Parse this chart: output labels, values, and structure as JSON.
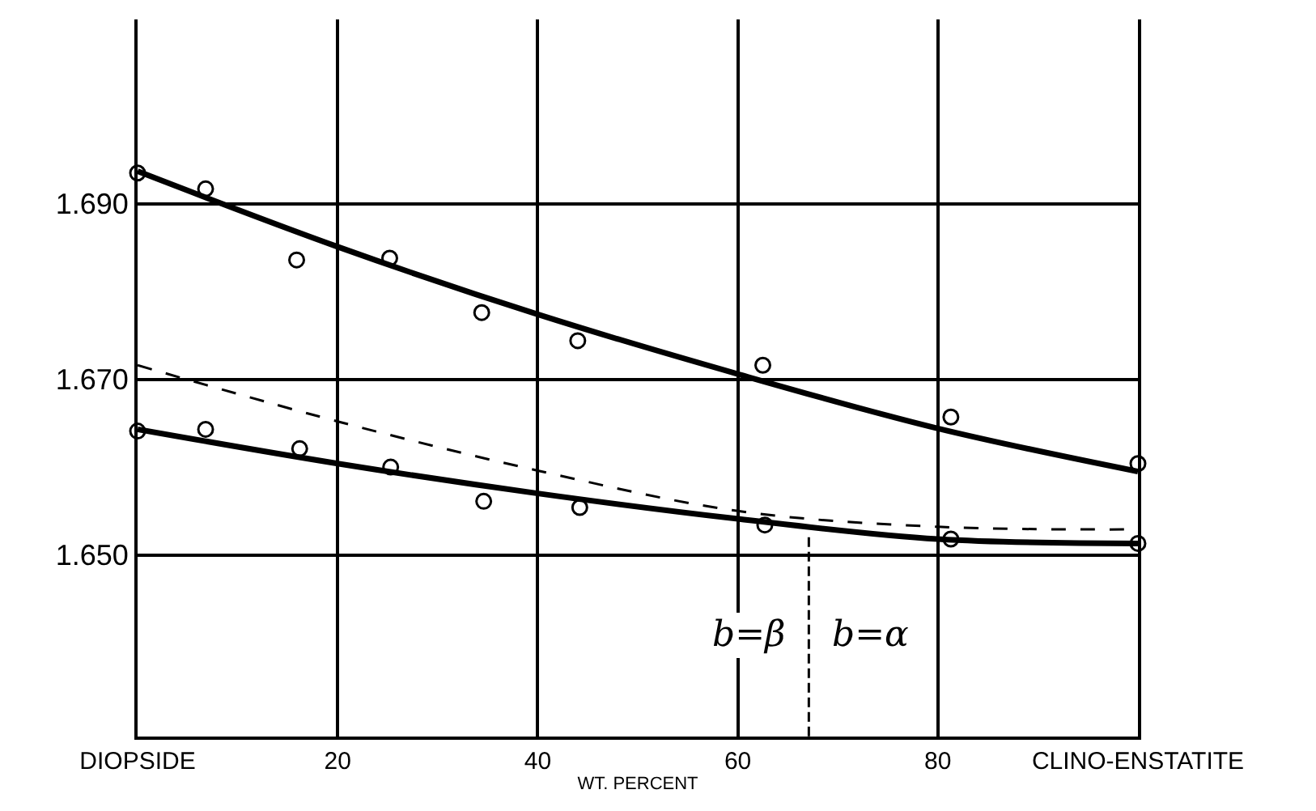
{
  "chart_data": {
    "type": "scatter",
    "xlabel": "WT. PERCENT",
    "xlim": [
      0,
      100
    ],
    "ylim": [
      1.6293,
      1.711
    ],
    "xticks": [
      {
        "value": 0,
        "label": "DIOPSIDE"
      },
      20,
      40,
      60,
      80,
      {
        "value": 100,
        "label": "CLINO-ENSTATITE"
      }
    ],
    "yticks": [
      {
        "value": 1.65,
        "label": "1.650"
      },
      {
        "value": 1.67,
        "label": "1.670"
      },
      {
        "value": 1.69,
        "label": "1.690"
      }
    ],
    "grid": true,
    "marker": "circle",
    "series": [
      {
        "color": "#000000",
        "x": [
          0,
          6.8,
          15.9,
          25.2,
          34.4,
          44,
          62.5,
          81.3,
          100
        ],
        "values": [
          1.6935,
          1.6917,
          1.6836,
          1.6838,
          1.6776,
          1.6744,
          1.6716,
          1.6657,
          1.6604
        ]
      },
      {
        "color": "#000000",
        "x": [
          0,
          6.8,
          16.2,
          25.3,
          34.6,
          44.2,
          62.7,
          81.3,
          100
        ],
        "values": [
          1.6641,
          1.6643,
          1.6621,
          1.66,
          1.6561,
          1.6554,
          1.6534,
          1.6518,
          1.6513
        ]
      },
      {
        "type": "line",
        "color": "#000000",
        "marker": "none",
        "line_style": "solid",
        "x": [
          0,
          20,
          40,
          60,
          80,
          100
        ],
        "values": [
          1.6937,
          1.6851,
          1.6774,
          1.6706,
          1.6644,
          1.6595
        ]
      },
      {
        "type": "line",
        "color": "#000000",
        "marker": "none",
        "line_style": "solid",
        "x": [
          0,
          20,
          40,
          60,
          80,
          100
        ],
        "values": [
          1.6643,
          1.6604,
          1.657,
          1.6541,
          1.6518,
          1.6513
        ]
      },
      {
        "type": "line",
        "color": "#000000",
        "marker": "none",
        "line_style": "dashed",
        "x": [
          0,
          20,
          40,
          60,
          80,
          100
        ],
        "values": [
          1.6716,
          1.6652,
          1.6596,
          1.655,
          1.6532,
          1.6529
        ]
      },
      {
        "type": "line",
        "color": "#000000",
        "marker": "none",
        "line_style": "dashed",
        "x": [
          67.1,
          67.1
        ],
        "values": [
          1.652,
          1.6293
        ]
      }
    ],
    "annotations": [
      "b=β",
      "b=α"
    ]
  }
}
